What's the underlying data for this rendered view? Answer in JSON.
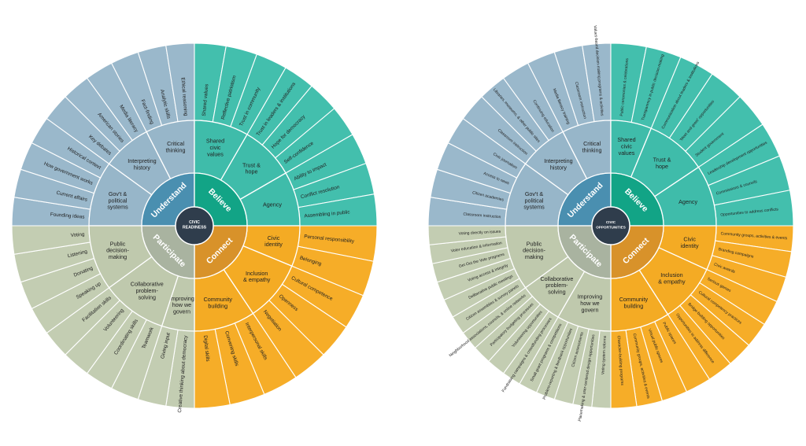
{
  "colors": {
    "understand": {
      "center": "#4a8fb0",
      "inner": "#97b6c9",
      "outer": "#9ab8cb"
    },
    "believe": {
      "center": "#12a486",
      "inner": "#3fbcaa",
      "outer": "#43bfad"
    },
    "connect": {
      "center": "#d8922a",
      "inner": "#f4ab24",
      "outer": "#f6ad28"
    },
    "participate": {
      "center": "#a9b3a0",
      "inner": "#bfc9ad",
      "outer": "#c3cdb2"
    },
    "hub": "#2f3d4c",
    "line": "#ffffff",
    "text": "#222222",
    "center_text": "#ffffff"
  },
  "wheels": [
    {
      "id": "civic-readiness",
      "center_label": [
        "CIVIC",
        "READINESS"
      ],
      "quadrants": [
        {
          "key": "understand",
          "label": "Understand",
          "subs": [
            {
              "label": [
                "Gov't &",
                "political",
                "systems"
              ],
              "outer": [
                "Founding ideas",
                "Current affairs",
                "How government works",
                "Historical context"
              ]
            },
            {
              "label": [
                "Interpreting",
                "history"
              ],
              "outer": [
                "Key debates",
                "American stories",
                "Media literacy"
              ]
            },
            {
              "label": [
                "Critical",
                "thinking"
              ],
              "outer": [
                "Fact-finding",
                "Analytic skills",
                "Ethical reasoning"
              ]
            }
          ]
        },
        {
          "key": "believe",
          "label": "Believe",
          "subs": [
            {
              "label": [
                "Shared",
                "civic",
                "values"
              ],
              "outer": [
                "Shared values",
                "Reflective patriotism",
                "Trust in community"
              ]
            },
            {
              "label": [
                "Trust &",
                "hope"
              ],
              "outer": [
                "Trust in leaders & institutions",
                "Hope for democracy",
                "Self-confidence"
              ]
            },
            {
              "label": [
                "Agency"
              ],
              "outer": [
                "Ability to impact",
                "Conflict resolution",
                "Assembling in public"
              ]
            }
          ]
        },
        {
          "key": "connect",
          "label": "Connect",
          "subs": [
            {
              "label": [
                "Civic",
                "identity"
              ],
              "outer": [
                "Personal responsibility",
                "Belonging"
              ]
            },
            {
              "label": [
                "Inclusion",
                "& empathy"
              ],
              "outer": [
                "Cultural competence",
                "Openness",
                "Negotiation"
              ]
            },
            {
              "label": [
                "Community",
                "building"
              ],
              "outer": [
                "Interpersonal skills",
                "Convening skills",
                "Digital skills"
              ]
            }
          ]
        },
        {
          "key": "participate",
          "label": "Participate",
          "subs": [
            {
              "label": [
                "Improving",
                "how we",
                "govern"
              ],
              "outer": [
                "Creative thinking about democracy",
                "Giving input"
              ]
            },
            {
              "label": [
                "Collaborative",
                "problem-",
                "solving"
              ],
              "outer": [
                "Teamwork",
                "Coordinating skills",
                "Volunteering",
                "Facilitation skills"
              ]
            },
            {
              "label": [
                "Public",
                "decision-",
                "making"
              ],
              "outer": [
                "Speaking up",
                "Donating",
                "Listening",
                "Voting"
              ]
            }
          ]
        }
      ]
    },
    {
      "id": "civic-opportunities",
      "center_label": [
        "CIVIC",
        "OPPORTUNITIES"
      ],
      "quadrants": [
        {
          "key": "understand",
          "label": "Understand",
          "subs": [
            {
              "label": [
                "Gov't &",
                "political",
                "systems"
              ],
              "outer": [
                "Classroom instruction",
                "Citizen academies",
                "Access to news",
                "Civic journalism"
              ]
            },
            {
              "label": [
                "Interpreting",
                "history"
              ],
              "outer": [
                "Classroom instruction",
                "Libraries, museums, & other public sites",
                "Continuing education"
              ]
            },
            {
              "label": [
                "Critical",
                "thinking"
              ],
              "outer": [
                "Media literacy training",
                "Classroom instruction",
                "Values-based decision-making programs & activities"
              ]
            }
          ]
        },
        {
          "key": "believe",
          "label": "Believe",
          "subs": [
            {
              "label": [
                "Shared",
                "civic",
                "values"
              ],
              "outer": [
                "Public ceremonies & celebrations",
                "Transparency in public decision-making"
              ]
            },
            {
              "label": [
                "Trust &",
                "hope"
              ],
              "outer": [
                "Communication about leaders & institutions",
                "'Meet and greet' opportunities",
                "Student government"
              ]
            },
            {
              "label": [
                "Agency"
              ],
              "outer": [
                "Leadership development opportunities",
                "Commissions & councils",
                "Opportunities to address conflicts"
              ]
            }
          ]
        },
        {
          "key": "connect",
          "label": "Connect",
          "subs": [
            {
              "label": [
                "Civic",
                "identity"
              ],
              "outer": [
                "Community groups, activities & events",
                "Branding campaigns",
                "Civic awards"
              ]
            },
            {
              "label": [
                "Inclusion",
                "& empathy"
              ],
              "outer": [
                "Serious games",
                "Cultural competency practices",
                "Bridge-building opportunities",
                "Opportunities to address difference"
              ]
            },
            {
              "label": [
                "Community",
                "building"
              ],
              "outer": [
                "Public spaces",
                "Virtual public spaces",
                "Community groups, activities & events",
                "Character-building programs"
              ]
            }
          ]
        },
        {
          "key": "participate",
          "label": "Participate",
          "subs": [
            {
              "label": [
                "Improving",
                "how we",
                "govern"
              ],
              "outer": [
                "Voting system reforms",
                "Placemaking & user-centered design opportunities",
                "Citizen assessments",
                "Problem-reporting & feedback opportunities",
                "Small grant programs & competitions"
              ]
            },
            {
              "label": [
                "Collaborative",
                "problem-",
                "solving"
              ],
              "outer": [
                "Fundraising campaigns & crowdfunding processes",
                "Volunteering opportunities",
                "Participatory budgeting processes",
                "Neighborhood associations, councils, & online networks"
              ]
            },
            {
              "label": [
                "Public",
                "decision-",
                "making"
              ],
              "outer": [
                "Citizen assemblies & survey panels",
                "Deliberative public meetings",
                "Voting access & integrity",
                "Get Out the Vote programs",
                "Voter education & information",
                "Voting directly on issues"
              ]
            }
          ]
        }
      ]
    }
  ]
}
